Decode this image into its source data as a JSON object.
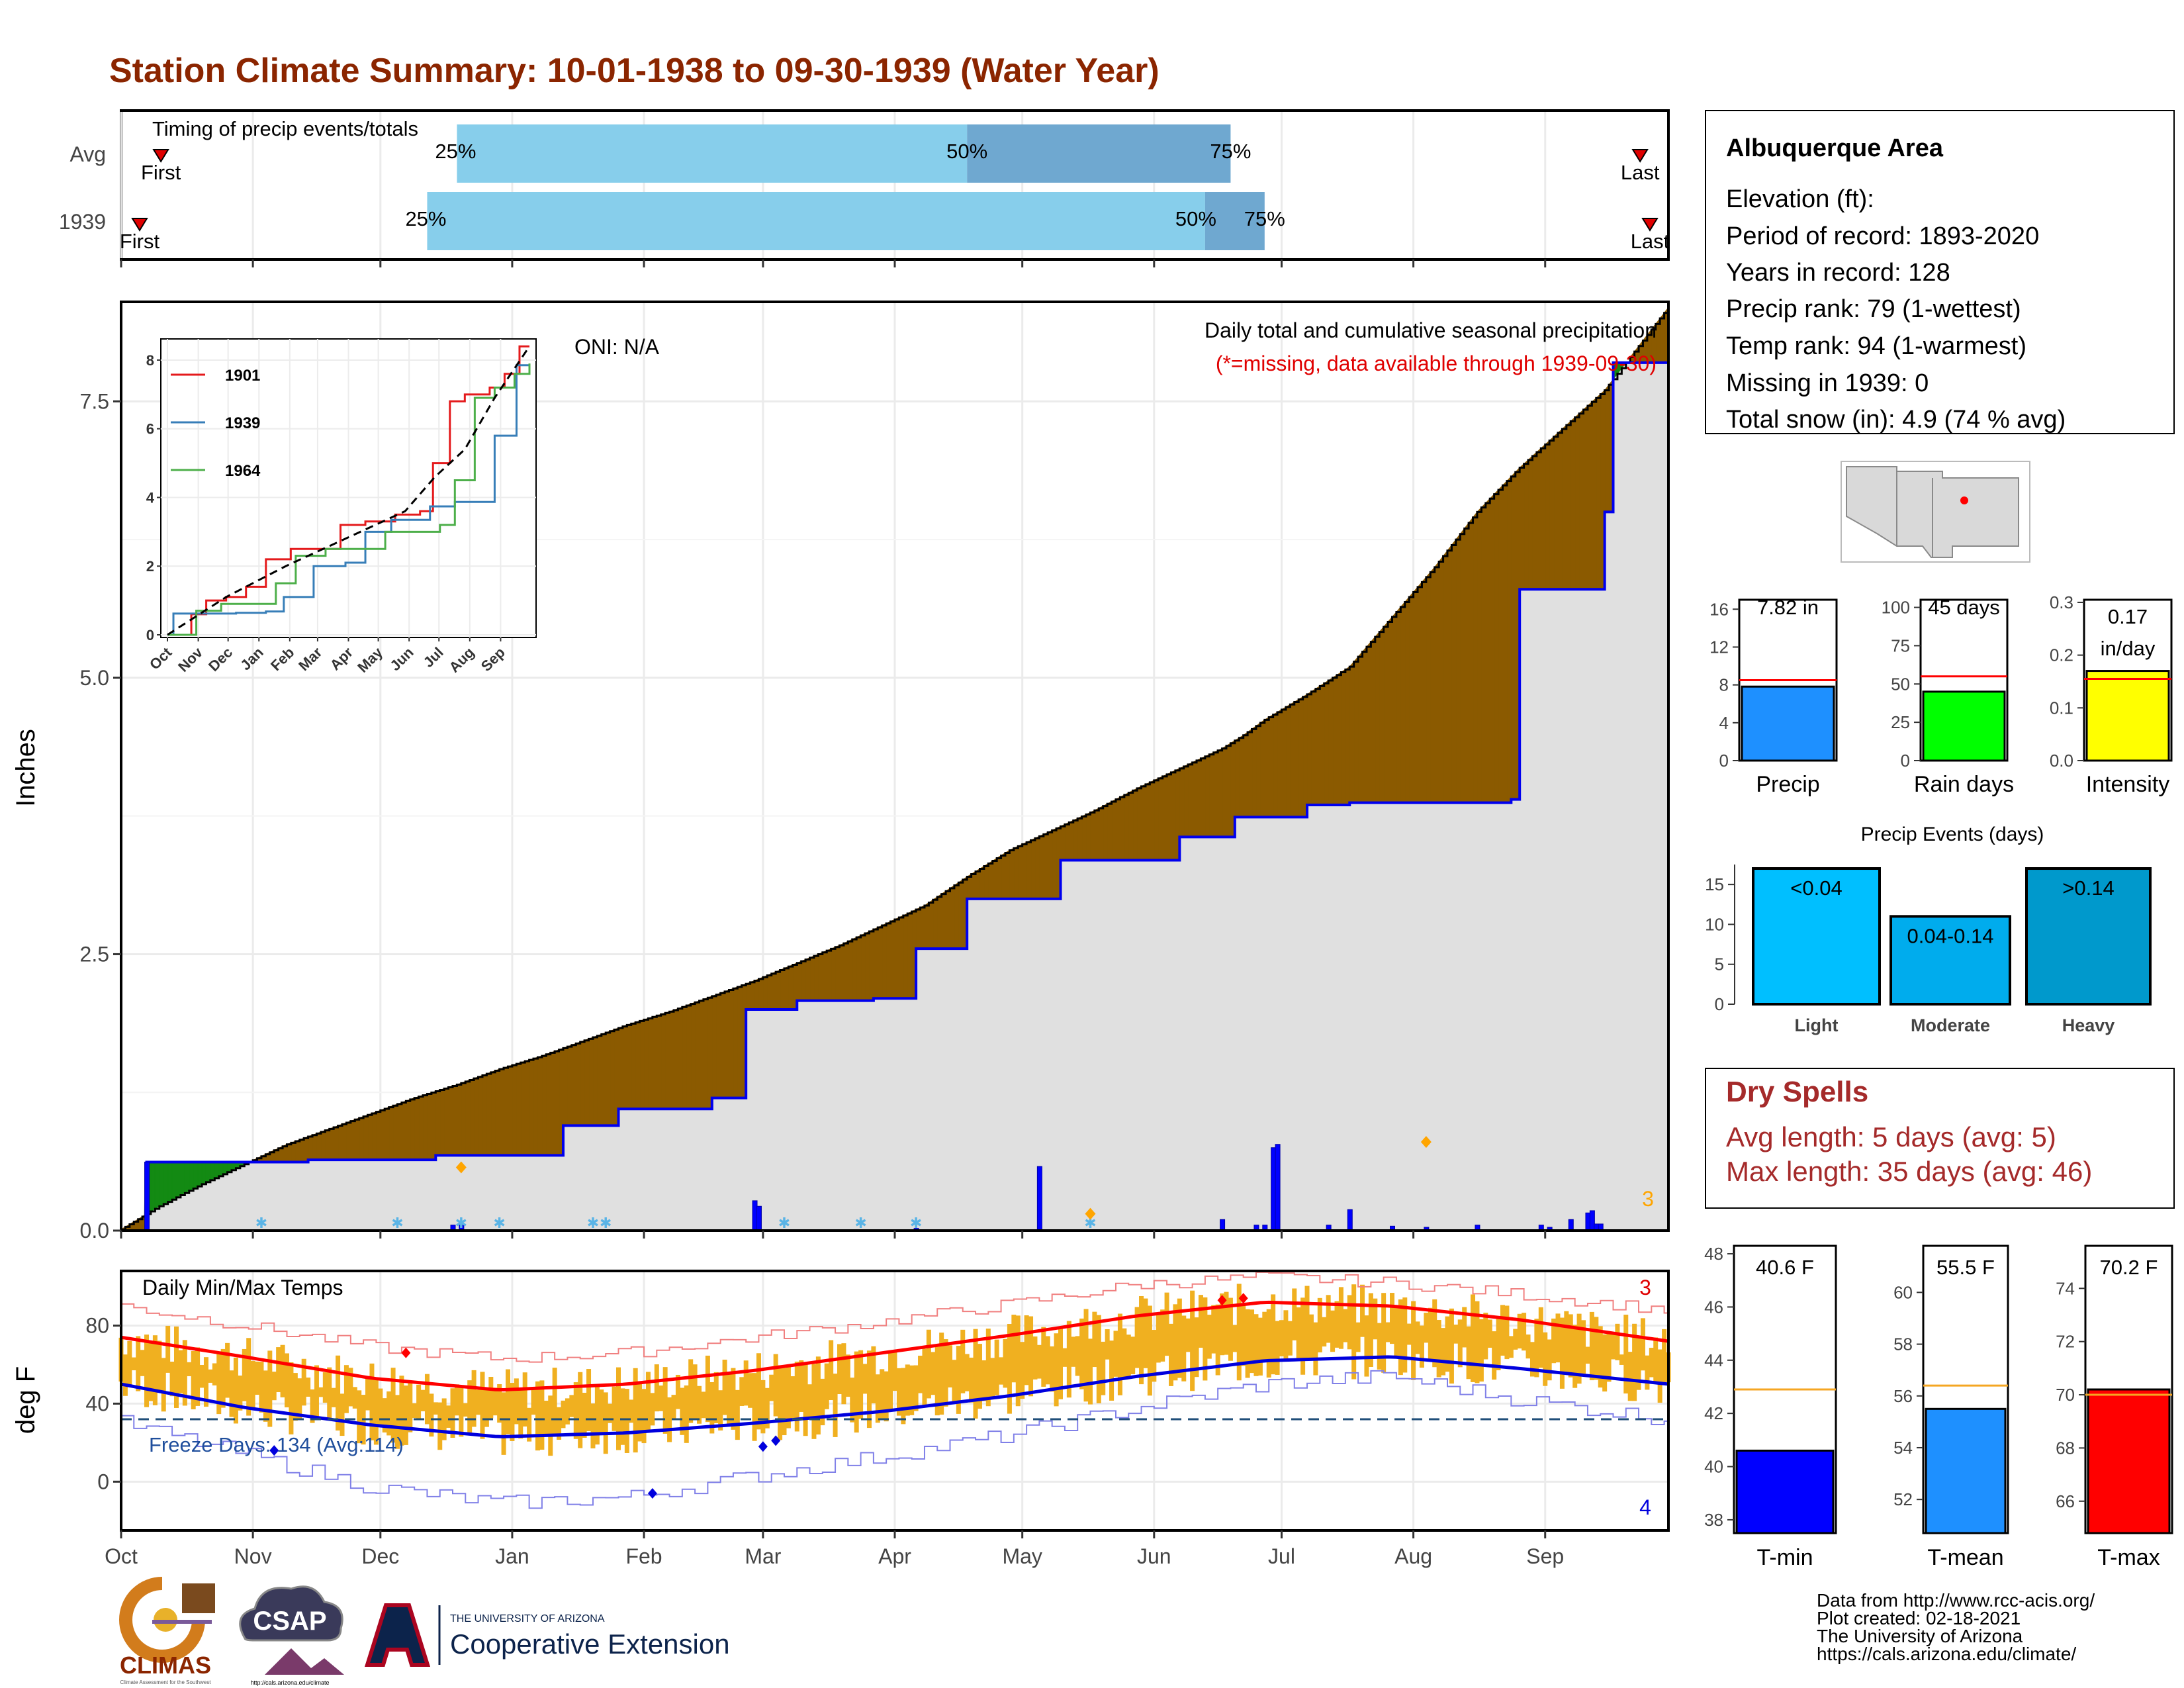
{
  "page_title": "Station Climate Summary: 10-01-1938 to 09-30-1939 (Water Year)",
  "months": [
    "Oct",
    "Nov",
    "Dec",
    "Jan",
    "Feb",
    "Mar",
    "Apr",
    "May",
    "Jun",
    "Jul",
    "Aug",
    "Sep"
  ],
  "timing": {
    "title": "Timing of precip events/totals",
    "rows": [
      {
        "label": "Avg",
        "first_label": "First",
        "last_label": "Last",
        "first_day": 6,
        "last_day": 363,
        "p25_day": 80,
        "p50_day": 200,
        "p75_day": 262,
        "p25_label": "25%",
        "p50_label": "50%",
        "p75_label": "75%"
      },
      {
        "label": "1939",
        "first_label": "First",
        "last_label": "Last",
        "first_day": 1,
        "last_day": 365,
        "p25_day": 73,
        "p50_day": 256,
        "p75_day": 270,
        "p25_label": "25%",
        "p50_label": "50%",
        "p75_label": "75%"
      }
    ]
  },
  "precip_panel": {
    "ylabel": "Inches",
    "yticks": [
      "0.0",
      "2.5",
      "5.0",
      "7.5"
    ],
    "oni": "ONI: N/A",
    "title": "Daily total and cumulative seasonal precipitation",
    "note": "(*=missing, data available through 1939-09-30)",
    "count_label": "3"
  },
  "temp_panel": {
    "title": "Daily Min/Max Temps",
    "ylabel": "deg F",
    "yticks": [
      "0",
      "40",
      "80"
    ],
    "freeze_label": "Freeze Days: 134 (Avg:114)",
    "count_hot": "3",
    "count_cold": "4"
  },
  "inset": {
    "yticks": [
      "0",
      "2",
      "4",
      "6",
      "8"
    ],
    "xticks": [
      "Oct",
      "Nov",
      "Dec",
      "Jan",
      "Feb",
      "Mar",
      "Apr",
      "May",
      "Jun",
      "Jul",
      "Aug",
      "Sep"
    ],
    "legend": [
      {
        "name": "1901",
        "color": "#e41a1c"
      },
      {
        "name": "1939",
        "color": "#377eb8"
      },
      {
        "name": "1964",
        "color": "#4daf4a"
      }
    ]
  },
  "station": {
    "name": "Albuquerque Area",
    "lines": [
      "Elevation (ft):",
      "Period of record: 1893-2020",
      "Years in record: 128",
      "Precip rank: 79 (1-wettest)",
      "Temp rank: 94 (1-warmest)",
      "Missing in 1939: 0",
      "Total snow (in): 4.9 (74 % avg)"
    ]
  },
  "summary_bars": [
    {
      "label": "Precip",
      "value_label": "7.82 in",
      "value": 7.82,
      "avg": 8.5,
      "ymax": 17,
      "yticks": [
        "0",
        "4",
        "8",
        "12",
        "16"
      ],
      "tick_values": [
        0,
        4,
        8,
        12,
        16
      ],
      "color": "#1e90ff"
    },
    {
      "label": "Rain days",
      "value_label": "45 days",
      "value": 45,
      "avg": 55,
      "ymax": 105,
      "yticks": [
        "0",
        "25",
        "50",
        "75",
        "100"
      ],
      "tick_values": [
        0,
        25,
        50,
        75,
        100
      ],
      "color": "#00ff00"
    },
    {
      "label": "Intensity",
      "value_label": "0.17 in/day",
      "value": 0.17,
      "avg": 0.155,
      "ymax": 0.305,
      "yticks": [
        "0.0",
        "0.1",
        "0.2",
        "0.3"
      ],
      "tick_values": [
        0,
        0.1,
        0.2,
        0.3
      ],
      "color": "#ffff00"
    }
  ],
  "events": {
    "title": "Precip Events (days)",
    "yticks": [
      "0",
      "5",
      "10",
      "15"
    ],
    "bars": [
      {
        "label": "Light",
        "value": 17,
        "value_label": "<0.04",
        "color": "#00bfff"
      },
      {
        "label": "Moderate",
        "value": 11,
        "value_label": "0.04-0.14",
        "color": "#00aced"
      },
      {
        "label": "Heavy",
        "value": 17,
        "value_label": ">0.14",
        "color": "#0099cc"
      }
    ]
  },
  "dry_spells": {
    "title": "Dry Spells",
    "avg_line": "Avg length: 5 days (avg: 5)",
    "max_line": "Max length: 35 days (avg: 46)"
  },
  "temp_bars": [
    {
      "label": "T-min",
      "value_label": "40.6 F",
      "value": 40.6,
      "avg": 42.9,
      "ymin": 37.5,
      "ymax": 48.3,
      "yticks": [
        "38",
        "40",
        "42",
        "44",
        "46",
        "48"
      ],
      "tick_values": [
        38,
        40,
        42,
        44,
        46,
        48
      ],
      "color": "#0000ff"
    },
    {
      "label": "T-mean",
      "value_label": "55.5 F",
      "value": 55.5,
      "avg": 56.4,
      "ymin": 50.7,
      "ymax": 61.8,
      "yticks": [
        "52",
        "54",
        "56",
        "58",
        "60"
      ],
      "tick_values": [
        52,
        54,
        56,
        58,
        60
      ],
      "color": "#1e90ff"
    },
    {
      "label": "T-max",
      "value_label": "70.2 F",
      "value": 70.2,
      "avg": 70.0,
      "ymin": 64.8,
      "ymax": 75.6,
      "yticks": [
        "66",
        "68",
        "70",
        "72",
        "74"
      ],
      "tick_values": [
        66,
        68,
        70,
        72,
        74
      ],
      "color": "#ff0000"
    }
  ],
  "credits": [
    "Data from http://www.rcc-acis.org/",
    "Plot created: 02-18-2021",
    "The University of Arizona",
    "https://cals.arizona.edu/climate/"
  ],
  "logos": {
    "climas": "CLIMAS",
    "climas_sub": "Climate Assessment for the Southwest",
    "csap": "CSAP",
    "csap_url": "http://cals.arizona.edu/climate",
    "ua_small": "THE UNIVERSITY OF ARIZONA",
    "coop": "Cooperative Extension"
  },
  "chart_data": [
    {
      "type": "area",
      "title": "Daily total and cumulative seasonal precipitation",
      "ylabel": "Inches",
      "ylim": [
        0,
        8.4
      ],
      "x_unit": "day of water year",
      "average_cumulative": {
        "x": [
          1,
          10,
          20,
          30,
          40,
          50,
          60,
          70,
          80,
          90,
          100,
          110,
          120,
          130,
          140,
          150,
          160,
          170,
          180,
          190,
          200,
          210,
          220,
          230,
          240,
          250,
          260,
          265,
          270,
          280,
          290,
          300,
          310,
          320,
          330,
          340,
          350,
          365
        ],
        "y": [
          0.01,
          0.22,
          0.42,
          0.6,
          0.78,
          0.92,
          1.06,
          1.2,
          1.32,
          1.46,
          1.58,
          1.72,
          1.86,
          1.98,
          2.12,
          2.26,
          2.42,
          2.58,
          2.76,
          2.94,
          3.2,
          3.44,
          3.62,
          3.8,
          4.0,
          4.18,
          4.36,
          4.48,
          4.62,
          4.85,
          5.1,
          5.55,
          6.0,
          6.5,
          6.9,
          7.25,
          7.6,
          8.35
        ]
      },
      "observed_cumulative": {
        "x": [
          1,
          6,
          7,
          40,
          45,
          70,
          75,
          100,
          105,
          115,
          118,
          130,
          140,
          145,
          148,
          152,
          160,
          170,
          178,
          180,
          188,
          200,
          217,
          222,
          226,
          250,
          258,
          263,
          265,
          268,
          270,
          273,
          280,
          290,
          295,
          300,
          310,
          328,
          330,
          350,
          352,
          365
        ],
        "y": [
          0.0,
          0.0,
          0.62,
          0.62,
          0.64,
          0.64,
          0.68,
          0.68,
          0.95,
          0.95,
          1.1,
          1.1,
          1.2,
          1.2,
          2.0,
          2.0,
          2.08,
          2.08,
          2.1,
          2.1,
          2.55,
          3.0,
          3.0,
          3.35,
          3.35,
          3.56,
          3.56,
          3.74,
          3.74,
          3.74,
          3.74,
          3.74,
          3.85,
          3.87,
          3.87,
          3.87,
          3.87,
          3.9,
          5.8,
          6.5,
          7.85,
          7.85
        ]
      },
      "daily_precip": {
        "x": [
          7,
          79,
          81,
          150,
          151,
          188,
          217,
          260,
          268,
          270,
          272,
          273,
          285,
          290,
          300,
          308,
          320,
          335,
          337,
          342,
          346,
          347,
          348,
          349
        ],
        "y": [
          0.62,
          0.05,
          0.05,
          0.27,
          0.22,
          0.02,
          0.58,
          0.1,
          0.05,
          0.05,
          0.75,
          0.78,
          0.05,
          0.19,
          0.04,
          0.03,
          0.05,
          0.05,
          0.03,
          0.1,
          0.16,
          0.18,
          0.06,
          0.06
        ]
      }
    },
    {
      "type": "line",
      "series": [
        {
          "name": "1901",
          "color": "#e41a1c",
          "x": [
            1,
            25,
            40,
            60,
            80,
            100,
            125,
            150,
            175,
            200,
            230,
            255,
            268,
            285,
            300,
            325,
            340,
            355,
            365
          ],
          "y": [
            0,
            0.6,
            1.0,
            1.1,
            1.4,
            2.2,
            2.5,
            2.5,
            3.2,
            3.3,
            3.5,
            3.6,
            5.0,
            6.8,
            7.0,
            7.2,
            7.6,
            8.4,
            8.4
          ]
        },
        {
          "name": "1939",
          "color": "#377eb8",
          "x": [
            1,
            7,
            40,
            70,
            100,
            118,
            148,
            180,
            200,
            226,
            265,
            290,
            330,
            352,
            365
          ],
          "y": [
            0,
            0.62,
            0.62,
            0.64,
            0.68,
            1.1,
            2.0,
            2.1,
            3.0,
            3.35,
            3.74,
            3.87,
            5.8,
            7.85,
            7.85
          ]
        },
        {
          "name": "1964",
          "color": "#4daf4a",
          "x": [
            1,
            30,
            55,
            90,
            110,
            130,
            160,
            190,
            220,
            250,
            275,
            290,
            310,
            330,
            350,
            365
          ],
          "y": [
            0,
            0.7,
            0.9,
            0.9,
            1.5,
            2.3,
            2.5,
            2.5,
            3.0,
            3.0,
            3.2,
            4.5,
            6.9,
            7.2,
            7.6,
            7.9
          ]
        }
      ],
      "average_series": {
        "name": "Avg",
        "x": [
          1,
          60,
          120,
          180,
          240,
          270,
          300,
          330,
          365
        ],
        "y": [
          0,
          1.1,
          2.0,
          2.8,
          3.6,
          4.6,
          5.4,
          6.9,
          8.4
        ]
      },
      "ylim": [
        0,
        8.5
      ]
    },
    {
      "type": "line",
      "title": "Daily Min/Max Temps",
      "ylabel": "deg F",
      "ylim": [
        -25,
        108
      ],
      "normal_max": {
        "x": [
          1,
          30,
          60,
          90,
          120,
          150,
          180,
          210,
          240,
          270,
          300,
          330,
          365
        ],
        "y": [
          74,
          64,
          53,
          47,
          50,
          57,
          66,
          75,
          85,
          92,
          90,
          83,
          72
        ]
      },
      "normal_min": {
        "x": [
          1,
          30,
          60,
          90,
          120,
          150,
          180,
          210,
          240,
          270,
          300,
          330,
          365
        ],
        "y": [
          50,
          38,
          29,
          23,
          25,
          30,
          36,
          44,
          54,
          62,
          64,
          58,
          50
        ]
      },
      "record_high": {
        "x": [
          1,
          30,
          60,
          90,
          120,
          150,
          180,
          210,
          240,
          270,
          300,
          330,
          365
        ],
        "y": [
          90,
          80,
          69,
          63,
          66,
          74,
          82,
          91,
          101,
          105,
          102,
          96,
          88
        ]
      },
      "record_low": {
        "x": [
          1,
          30,
          60,
          90,
          120,
          150,
          180,
          210,
          240,
          270,
          300,
          330,
          365
        ],
        "y": [
          30,
          14,
          -3,
          -11,
          -8,
          3,
          13,
          24,
          38,
          50,
          54,
          42,
          32
        ]
      },
      "freeze_threshold": 32
    }
  ]
}
